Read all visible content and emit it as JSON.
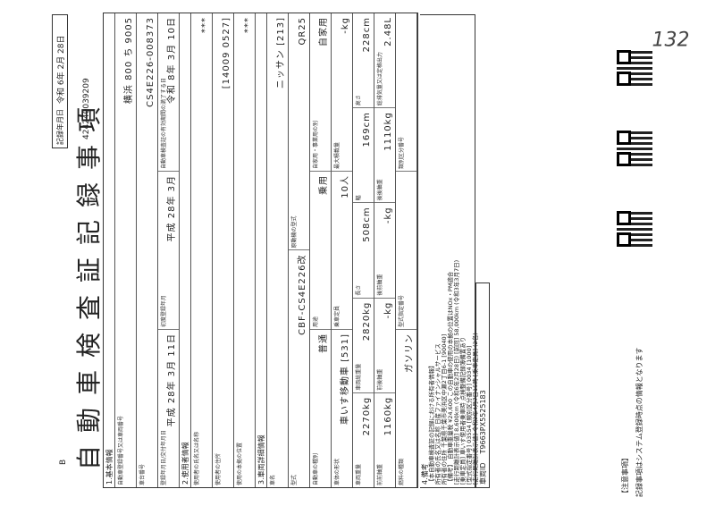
{
  "header": {
    "mark": "B",
    "title": "自動車検査証記録事項",
    "record_date_label": "記録年月日",
    "record_date": "令和 6年 2月 28日",
    "doc_number": "424240039209",
    "handwritten": "132"
  },
  "table": {
    "rows": [
      {
        "heading": "1.基本情報"
      },
      {
        "cells": [
          {
            "label": "自動車登録番号又は車両番号",
            "value": "横浜 800 ち 9005"
          }
        ]
      },
      {
        "cells": [
          {
            "label": "車台番号",
            "value": "CS4E226-008373"
          }
        ]
      },
      {
        "cells": [
          {
            "label": "登録年月日/交付年月日",
            "value": "平成 28年 3月 11日"
          },
          {
            "label": "初度登録年月",
            "value": "平成 28年 3月"
          },
          {
            "label": "自動車検査証の有効期間の満了する日",
            "value": "令和 8年 3月 10日"
          }
        ]
      },
      {
        "heading": "2.使用者情報"
      },
      {
        "cells": [
          {
            "label": "使用者の氏名又は名称",
            "value": "***"
          }
        ]
      },
      {
        "cells": [
          {
            "label": "使用者の住所",
            "value": "[14009 0527]"
          }
        ]
      },
      {
        "cells": [
          {
            "label": "使用の本拠の位置",
            "value": "***"
          }
        ]
      },
      {
        "heading": "3.車両詳細情報"
      },
      {
        "cells": [
          {
            "label": "車名",
            "value": "ニッサン  [213]"
          }
        ]
      },
      {
        "cells": [
          {
            "label": "型式",
            "value": "CBF-CS4E226改"
          },
          {
            "label": "原動機の型式",
            "value": "QR25"
          }
        ]
      },
      {
        "cells": [
          {
            "label": "自動車の種別",
            "value": "普通"
          },
          {
            "label": "用途",
            "value": "乗用"
          },
          {
            "label": "自家用・事業用の別",
            "value": "自家用"
          }
        ]
      },
      {
        "cells": [
          {
            "label": "車体の形状",
            "value": "車いす移動車 [531]"
          },
          {
            "label": "乗車定員",
            "value": "10人"
          },
          {
            "label": "最大積載量",
            "value": "-kg"
          }
        ]
      },
      {
        "cells": [
          {
            "label": "車両重量",
            "value": "2270kg"
          },
          {
            "label": "車両総重量",
            "value": "2820kg"
          },
          {
            "label": "長さ",
            "value": "508cm"
          },
          {
            "label": "幅",
            "value": "169cm"
          },
          {
            "label": "高さ",
            "value": "228cm"
          }
        ]
      },
      {
        "cells": [
          {
            "label": "前前軸重",
            "value": "1160kg"
          },
          {
            "label": "前後軸重",
            "value": "-kg"
          },
          {
            "label": "後前軸重",
            "value": "-kg"
          },
          {
            "label": "後後軸重",
            "value": "1110kg"
          },
          {
            "label": "総排気量又は定格出力",
            "value": "2.48L"
          }
        ]
      },
      {
        "cells": [
          {
            "label": "燃料の種類",
            "value": "ガソリン"
          },
          {
            "label": "型式指定番号",
            "value": ""
          },
          {
            "label": "類別区分番号",
            "value": ""
          }
        ]
      }
    ]
  },
  "remarks": {
    "heading": "4.備考",
    "lines": [
      "【本自動車検査証の記録における所有者情報】",
      "所有者の氏名又は名称  日産ファイナンシャルサービス",
      "所有者の住所  千葉県千葉市美浜区中瀬2丁目6-1 [90040]",
      "【備考】 自動車重量税 ¥24,600  この自動車の使用の本拠の位置はNOx・PM適合",
      "[走行距離計表示値] 8,600km (令和6年2月28日)  [前回] 58,000km (令和3年3月7日)",
      "[乗車定員] 車いす使用者乗車時 点検整備記録簿備置あり",
      "[型式指定番号] 03554  [類別区分番号] 0034  [1000]",
      "[走行距離計表示値] 令和2年4月7日15時  [乗車定員] (2名)"
    ]
  },
  "vehicle_id": {
    "label": "車両ID",
    "value": "T9663PX5525183"
  },
  "notice": {
    "title": "【注意事項】",
    "text": "記録事項はシステム登録時点の情報となります"
  }
}
